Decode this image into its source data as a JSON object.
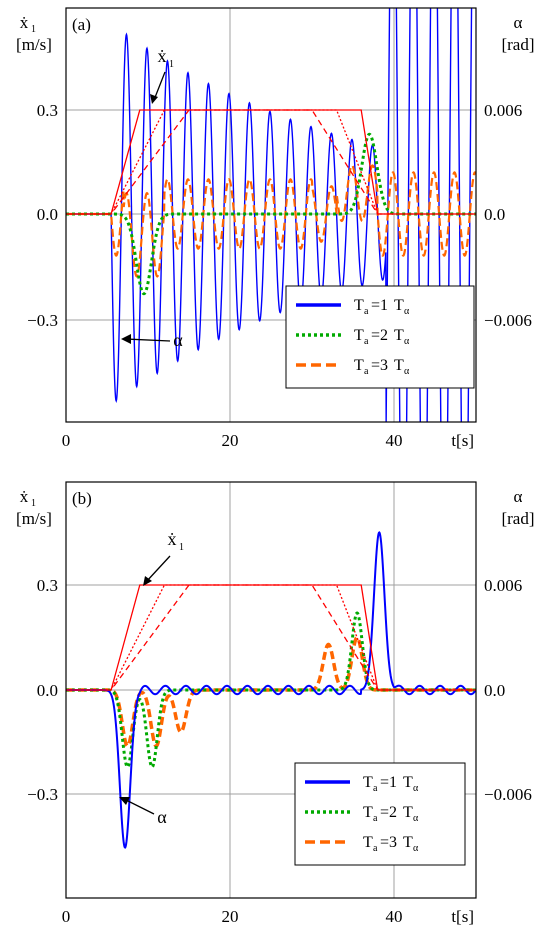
{
  "chart_data": [
    {
      "type": "line",
      "panel_label": "(a)",
      "xlabel": "t[s]",
      "ylabel_left": "ẋ1 [m/s]",
      "ylabel_right": "α [rad]",
      "xlim": [
        0,
        50
      ],
      "ylim_left": [
        -0.6,
        0.6
      ],
      "ylim_right": [
        -0.012,
        0.012
      ],
      "x_ticks": [
        "0",
        "20",
        "40"
      ],
      "y_ticks_left": [
        "0.3",
        "0.0",
        "−0.3"
      ],
      "y_ticks_right": [
        "0.006",
        "0.0",
        "−0.006"
      ],
      "grid": true,
      "legend_position": "lower-right",
      "annotations": [
        "ẋ1",
        "α"
      ],
      "series": [
        {
          "name": "Ta=1Tα",
          "color": "#0000ff",
          "style": "solid",
          "profile": {
            "t0": 5.5,
            "t1": 9,
            "t2": 36,
            "t3": 38,
            "vmax": 0.3
          }
        },
        {
          "name": "Ta=2Tα",
          "color": "#00aa00",
          "style": "dotted",
          "profile": {
            "t0": 5.5,
            "t1": 12,
            "t2": 33,
            "t3": 38,
            "vmax": 0.3
          }
        },
        {
          "name": "Ta=3Tα",
          "color": "#ff6600",
          "style": "dashed",
          "profile": {
            "t0": 5.5,
            "t1": 15,
            "t2": 30,
            "t3": 38,
            "vmax": 0.3
          }
        }
      ],
      "alpha_response": {
        "blue": {
          "amp": 0.55,
          "period": 2.5,
          "decay": 0.004,
          "growth_after": 39
        },
        "green": {
          "dips": [
            [
              9.5,
              -0.23
            ],
            [
              37,
              0.23
            ]
          ]
        },
        "orange": {
          "amp": 0.1,
          "period": 2.5
        }
      }
    },
    {
      "type": "line",
      "panel_label": "(b)",
      "xlabel": "t[s]",
      "ylabel_left": "ẋ1 [m/s]",
      "ylabel_right": "α [rad]",
      "xlim": [
        0,
        50
      ],
      "ylim_left": [
        -0.6,
        0.6
      ],
      "ylim_right": [
        -0.012,
        0.012
      ],
      "x_ticks": [
        "0",
        "20",
        "40"
      ],
      "y_ticks_left": [
        "0.3",
        "0.0",
        "−0.3"
      ],
      "y_ticks_right": [
        "0.006",
        "0.0",
        "−0.006"
      ],
      "grid": true,
      "legend_position": "lower-right",
      "annotations": [
        "ẋ1",
        "α"
      ],
      "series": [
        {
          "name": "Ta=1Tα",
          "color": "#0000ff",
          "style": "solid",
          "profile": {
            "t0": 5.5,
            "t1": 9,
            "t2": 36,
            "t3": 38,
            "vmax": 0.3
          }
        },
        {
          "name": "Ta=2Tα",
          "color": "#00aa00",
          "style": "dotted",
          "profile": {
            "t0": 5.5,
            "t1": 12,
            "t2": 33,
            "t3": 38,
            "vmax": 0.3
          }
        },
        {
          "name": "Ta=3Tα",
          "color": "#ff6600",
          "style": "dashed",
          "profile": {
            "t0": 5.5,
            "t1": 15,
            "t2": 30,
            "t3": 38,
            "vmax": 0.3
          }
        }
      ],
      "alpha_response": {
        "blue": {
          "dips": [
            [
              7.2,
              -0.45
            ],
            [
              38.2,
              0.45
            ]
          ]
        },
        "green": {
          "dips": [
            [
              7.5,
              -0.22
            ],
            [
              10.5,
              -0.22
            ],
            [
              35.5,
              0.22
            ]
          ]
        },
        "orange": {
          "dips": [
            [
              7.5,
              -0.16
            ],
            [
              11,
              -0.16
            ],
            [
              14,
              -0.12
            ],
            [
              32,
              0.13
            ],
            [
              35.5,
              0.15
            ]
          ]
        }
      }
    }
  ],
  "legend": {
    "items": [
      {
        "base": "T",
        "sub": "a",
        "mid": "=",
        "num": "1",
        "base2": "T",
        "sub2": "α",
        "color": "#0000ff",
        "dash": ""
      },
      {
        "base": "T",
        "sub": "a",
        "mid": "=",
        "num": "2",
        "base2": "T",
        "sub2": "α",
        "color": "#00aa00",
        "dash": "3,3"
      },
      {
        "base": "T",
        "sub": "a",
        "mid": "=",
        "num": "3",
        "base2": "T",
        "sub2": "α",
        "color": "#ff6600",
        "dash": "10,5"
      }
    ]
  },
  "labels": {
    "ydot": "ẋ",
    "ydot_sub": "1",
    "ms": "[m/s]",
    "alpha": "α",
    "rad": "[rad]"
  }
}
